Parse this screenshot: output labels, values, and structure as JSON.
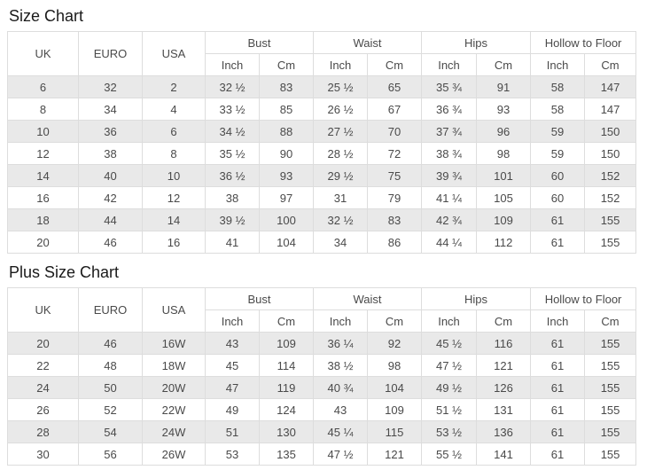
{
  "colors": {
    "border": "#dddddd",
    "stripe": "#e9e9e9",
    "text": "#4a4a4a",
    "title": "#1a1a1a",
    "header_bg": "#ffffff"
  },
  "tables": [
    {
      "title": "Size Chart",
      "simple_columns": [
        "UK",
        "EURO",
        "USA"
      ],
      "groups": [
        {
          "label": "Bust",
          "subs": [
            "Inch",
            "Cm"
          ]
        },
        {
          "label": "Waist",
          "subs": [
            "Inch",
            "Cm"
          ]
        },
        {
          "label": "Hips",
          "subs": [
            "Inch",
            "Cm"
          ]
        },
        {
          "label": "Hollow to Floor",
          "subs": [
            "Inch",
            "Cm"
          ]
        }
      ],
      "rows": [
        [
          "6",
          "32",
          "2",
          "32 ½",
          "83",
          "25 ½",
          "65",
          "35 ¾",
          "91",
          "58",
          "147"
        ],
        [
          "8",
          "34",
          "4",
          "33 ½",
          "85",
          "26 ½",
          "67",
          "36 ¾",
          "93",
          "58",
          "147"
        ],
        [
          "10",
          "36",
          "6",
          "34 ½",
          "88",
          "27 ½",
          "70",
          "37 ¾",
          "96",
          "59",
          "150"
        ],
        [
          "12",
          "38",
          "8",
          "35 ½",
          "90",
          "28 ½",
          "72",
          "38 ¾",
          "98",
          "59",
          "150"
        ],
        [
          "14",
          "40",
          "10",
          "36 ½",
          "93",
          "29 ½",
          "75",
          "39 ¾",
          "101",
          "60",
          "152"
        ],
        [
          "16",
          "42",
          "12",
          "38",
          "97",
          "31",
          "79",
          "41 ¼",
          "105",
          "60",
          "152"
        ],
        [
          "18",
          "44",
          "14",
          "39 ½",
          "100",
          "32 ½",
          "83",
          "42 ¾",
          "109",
          "61",
          "155"
        ],
        [
          "20",
          "46",
          "16",
          "41",
          "104",
          "34",
          "86",
          "44 ¼",
          "112",
          "61",
          "155"
        ]
      ]
    },
    {
      "title": "Plus Size Chart",
      "simple_columns": [
        "UK",
        "EURO",
        "USA"
      ],
      "groups": [
        {
          "label": "Bust",
          "subs": [
            "Inch",
            "Cm"
          ]
        },
        {
          "label": "Waist",
          "subs": [
            "Inch",
            "Cm"
          ]
        },
        {
          "label": "Hips",
          "subs": [
            "Inch",
            "Cm"
          ]
        },
        {
          "label": "Hollow to Floor",
          "subs": [
            "Inch",
            "Cm"
          ]
        }
      ],
      "rows": [
        [
          "20",
          "46",
          "16W",
          "43",
          "109",
          "36 ¼",
          "92",
          "45 ½",
          "116",
          "61",
          "155"
        ],
        [
          "22",
          "48",
          "18W",
          "45",
          "114",
          "38 ½",
          "98",
          "47 ½",
          "121",
          "61",
          "155"
        ],
        [
          "24",
          "50",
          "20W",
          "47",
          "119",
          "40 ¾",
          "104",
          "49 ½",
          "126",
          "61",
          "155"
        ],
        [
          "26",
          "52",
          "22W",
          "49",
          "124",
          "43",
          "109",
          "51 ½",
          "131",
          "61",
          "155"
        ],
        [
          "28",
          "54",
          "24W",
          "51",
          "130",
          "45 ¼",
          "115",
          "53 ½",
          "136",
          "61",
          "155"
        ],
        [
          "30",
          "56",
          "26W",
          "53",
          "135",
          "47 ½",
          "121",
          "55 ½",
          "141",
          "61",
          "155"
        ]
      ]
    }
  ]
}
